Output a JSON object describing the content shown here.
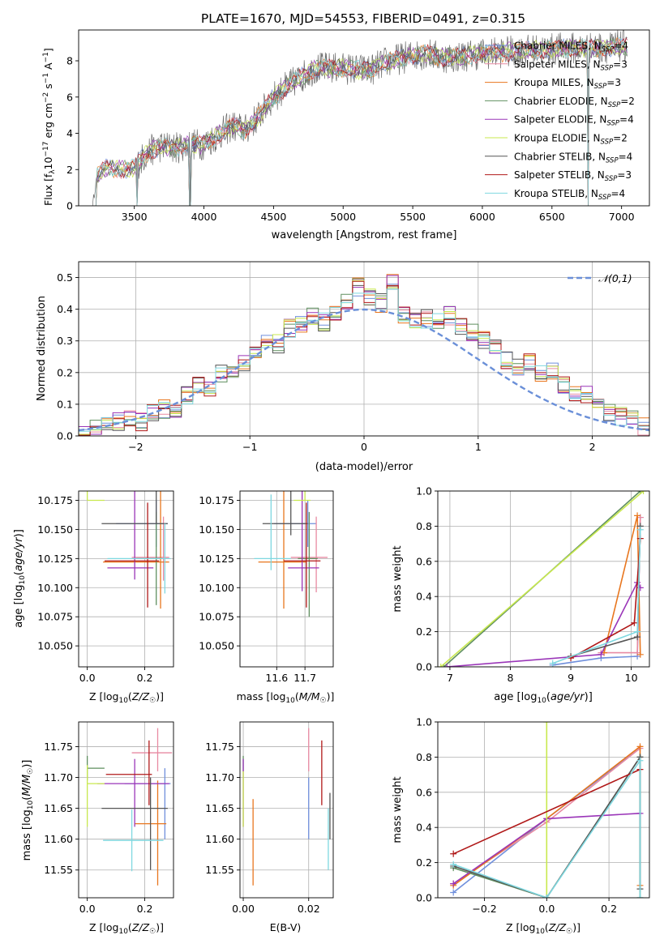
{
  "figure_title": "PLATE=1670, MJD=54553, FIBERID=0491, z=0.315",
  "colors": {
    "Chabrier MILES": "#6f8fdc",
    "Salpeter MILES": "#e88aa2",
    "Kroupa MILES": "#e8761e",
    "Chabrier ELODIE": "#5f8f5f",
    "Salpeter ELODIE": "#9a35b8",
    "Kroupa ELODIE": "#c8e84e",
    "Chabrier STELIB": "#555555",
    "Salpeter STELIB": "#b01818",
    "Kroupa STELIB": "#7fd8e0",
    "normal_curve": "#6a8fd8"
  },
  "chart_data": [
    {
      "type": "line",
      "title": "PLATE=1670, MJD=54553, FIBERID=0491, z=0.315",
      "xlabel": "wavelength [Angstrom, rest frame]",
      "ylabel": "Flux [f_λ 10^-17 erg cm^-2 s^-1 A^-1]",
      "xlim": [
        3100,
        7200
      ],
      "ylim": [
        0,
        9.7
      ],
      "xticks": [
        3500,
        4000,
        4500,
        5000,
        5500,
        6000,
        6500,
        7000
      ],
      "yticks": [
        0,
        2,
        4,
        6,
        8
      ],
      "legend_position": "upper right",
      "legend": [
        "Chabrier MILES, N_SSP=4",
        "Salpeter MILES, N_SSP=3",
        "Kroupa MILES, N_SSP=3",
        "Chabrier ELODIE, N_SSP=2",
        "Salpeter ELODIE, N_SSP=4",
        "Kroupa ELODIE, N_SSP=2",
        "Chabrier STELIB, N_SSP=4",
        "Salpeter STELIB, N_SSP=3",
        "Kroupa STELIB, N_SSP=4"
      ],
      "legend_colors": [
        "#6f8fdc",
        "#e88aa2",
        "#e8761e",
        "#5f8f5f",
        "#9a35b8",
        "#c8e84e",
        "#555555",
        "#b01818",
        "#7fd8e0"
      ],
      "spectrum_continuum": {
        "x": [
          3200,
          3230,
          3300,
          3400,
          3500,
          3600,
          3700,
          3800,
          3900,
          4000,
          4100,
          4200,
          4300,
          4400,
          4500,
          4600,
          4700,
          4800,
          4900,
          5000,
          5100,
          5200,
          5300,
          5400,
          5500,
          5600,
          5700,
          5800,
          5900,
          6000,
          6200,
          6400,
          6600,
          6800,
          7000
        ],
        "y": [
          0.0,
          1.6,
          2.1,
          2.0,
          2.1,
          3.0,
          3.3,
          3.2,
          3.4,
          3.4,
          3.9,
          4.4,
          4.2,
          5.0,
          6.0,
          6.6,
          7.1,
          7.6,
          7.6,
          7.6,
          7.5,
          7.5,
          7.9,
          8.1,
          8.3,
          8.4,
          8.2,
          8.2,
          8.3,
          8.4,
          8.5,
          8.6,
          8.7,
          8.7,
          8.8
        ]
      },
      "cutoffs": [
        3520,
        3900,
        6760
      ]
    },
    {
      "type": "bar",
      "xlabel": "(data-model)/error",
      "ylabel": "Normed distribution",
      "xlim": [
        -2.5,
        2.5
      ],
      "ylim": [
        0,
        0.55
      ],
      "xticks": [
        -2,
        -1,
        0,
        1,
        2
      ],
      "yticks": [
        0.0,
        0.1,
        0.2,
        0.3,
        0.4,
        0.5
      ],
      "legend": [
        "𝒩(0,1)"
      ],
      "legend_position": "upper right",
      "bin_edges_start": -2.5,
      "bin_width": 0.1,
      "base_values": [
        0.015,
        0.02,
        0.03,
        0.045,
        0.05,
        0.045,
        0.07,
        0.085,
        0.075,
        0.13,
        0.16,
        0.155,
        0.2,
        0.21,
        0.23,
        0.27,
        0.3,
        0.29,
        0.34,
        0.35,
        0.38,
        0.36,
        0.38,
        0.43,
        0.47,
        0.44,
        0.42,
        0.48,
        0.38,
        0.36,
        0.37,
        0.36,
        0.38,
        0.35,
        0.33,
        0.3,
        0.28,
        0.24,
        0.22,
        0.23,
        0.2,
        0.2,
        0.16,
        0.14,
        0.13,
        0.09,
        0.075,
        0.06,
        0.05,
        0.03
      ]
    },
    {
      "type": "scatter",
      "xlabel": "Z [log10(Z/Z☉)]",
      "ylabel": "age [log10(age/yr)]",
      "xlim": [
        -0.03,
        0.3
      ],
      "ylim": [
        10.032,
        10.183
      ],
      "xticks": [
        0.0,
        0.2
      ],
      "yticks": [
        10.05,
        10.075,
        10.1,
        10.125,
        10.15,
        10.175
      ],
      "points": [
        {
          "x": 0.24,
          "y": 10.155,
          "xerr": [
            0.14,
            0.04
          ],
          "yerr": [
            0.02,
            0.02
          ],
          "model": "Chabrier MILES"
        },
        {
          "x": 0.265,
          "y": 10.126,
          "xerr": [
            0.11,
            0.02
          ],
          "yerr": [
            0.02,
            0.035
          ],
          "model": "Salpeter MILES"
        },
        {
          "x": 0.255,
          "y": 10.122,
          "xerr": [
            0.2,
            0.03
          ],
          "yerr": [
            0.04,
            0.085
          ],
          "model": "Kroupa MILES"
        },
        {
          "x": 0.24,
          "y": 10.125,
          "xerr": [
            0.07,
            0.02
          ],
          "yerr": [
            0.04,
            0.04
          ],
          "model": "Chabrier ELODIE"
        },
        {
          "x": 0.165,
          "y": 10.117,
          "xerr": [
            0.095,
            0.065
          ],
          "yerr": [
            0.01,
            0.08
          ],
          "model": "Salpeter ELODIE"
        },
        {
          "x": 0.0,
          "y": 10.175,
          "xerr": [
            0.0,
            0.06
          ],
          "yerr": [
            0.0,
            0.075
          ],
          "model": "Kroupa ELODIE"
        },
        {
          "x": 0.24,
          "y": 10.155,
          "xerr": [
            0.19,
            0.04
          ],
          "yerr": [
            0.0,
            0.068
          ],
          "model": "Chabrier STELIB"
        },
        {
          "x": 0.21,
          "y": 10.123,
          "xerr": [
            0.15,
            0.04
          ],
          "yerr": [
            0.04,
            0.05
          ],
          "model": "Salpeter STELIB"
        },
        {
          "x": 0.27,
          "y": 10.125,
          "xerr": [
            0.2,
            0.02
          ],
          "yerr": [
            0.03,
            0.03
          ],
          "model": "Kroupa STELIB"
        }
      ]
    },
    {
      "type": "scatter",
      "xlabel": "mass [log10(M/M☉)]",
      "ylabel": "",
      "xlim": [
        11.47,
        11.8
      ],
      "ylim": [
        10.032,
        10.183
      ],
      "xticks": [
        11.6,
        11.7
      ],
      "yticks": [
        10.05,
        10.075,
        10.1,
        10.125,
        10.15,
        10.175
      ],
      "points": [
        {
          "x": 11.71,
          "y": 10.155,
          "xerr": [
            0.12,
            0.03
          ],
          "yerr": [
            0.02,
            0.02
          ],
          "model": "Chabrier MILES"
        },
        {
          "x": 11.74,
          "y": 10.126,
          "xerr": [
            0.09,
            0.04
          ],
          "yerr": [
            0.03,
            0.035
          ],
          "model": "Salpeter MILES"
        },
        {
          "x": 11.625,
          "y": 10.122,
          "xerr": [
            0.09,
            0.08
          ],
          "yerr": [
            0.04,
            0.085
          ],
          "model": "Kroupa MILES"
        },
        {
          "x": 11.715,
          "y": 10.125,
          "xerr": [
            0.04,
            0.03
          ],
          "yerr": [
            0.05,
            0.04
          ],
          "model": "Chabrier ELODIE"
        },
        {
          "x": 11.69,
          "y": 10.117,
          "xerr": [
            0.05,
            0.06
          ],
          "yerr": [
            0.02,
            0.08
          ],
          "model": "Salpeter ELODIE"
        },
        {
          "x": 11.7,
          "y": 10.175,
          "xerr": [
            0.04,
            0.02
          ],
          "yerr": [
            0.0,
            0.03
          ],
          "model": "Kroupa ELODIE"
        },
        {
          "x": 11.65,
          "y": 10.155,
          "xerr": [
            0.1,
            0.06
          ],
          "yerr": [
            0.01,
            0.068
          ],
          "model": "Chabrier STELIB"
        },
        {
          "x": 11.705,
          "y": 10.123,
          "xerr": [
            0.08,
            0.05
          ],
          "yerr": [
            0.04,
            0.05
          ],
          "model": "Salpeter STELIB"
        },
        {
          "x": 11.58,
          "y": 10.125,
          "xerr": [
            0.06,
            0.07
          ],
          "yerr": [
            0.01,
            0.055
          ],
          "model": "Kroupa STELIB"
        }
      ]
    },
    {
      "type": "line",
      "xlabel": "age log10(age/yr)",
      "ylabel": "mass weight",
      "xlim": [
        6.8,
        10.3
      ],
      "ylim": [
        0.0,
        1.0
      ],
      "xticks": [
        7,
        8,
        9,
        10
      ],
      "yticks": [
        0.0,
        0.2,
        0.4,
        0.6,
        0.8,
        1.0
      ],
      "series": [
        {
          "model": "Chabrier MILES",
          "x": [
            8.7,
            9.5,
            10.1,
            10.15
          ],
          "y": [
            0.01,
            0.05,
            0.06,
            0.85
          ]
        },
        {
          "model": "Salpeter MILES",
          "x": [
            9.5,
            10.1,
            10.15
          ],
          "y": [
            0.08,
            0.08,
            0.85
          ]
        },
        {
          "model": "Kroupa MILES",
          "x": [
            9.55,
            10.1,
            10.15
          ],
          "y": [
            0.08,
            0.86,
            0.07
          ]
        },
        {
          "model": "Chabrier ELODIE",
          "x": [
            6.9,
            10.15
          ],
          "y": [
            0.0,
            1.0
          ]
        },
        {
          "model": "Salpeter ELODIE",
          "x": [
            6.95,
            9.5,
            10.1,
            10.15
          ],
          "y": [
            0.0,
            0.07,
            0.48,
            0.45
          ]
        },
        {
          "model": "Kroupa ELODIE",
          "x": [
            6.85,
            10.2
          ],
          "y": [
            0.0,
            1.0
          ]
        },
        {
          "model": "Chabrier STELIB",
          "x": [
            9.0,
            10.1,
            10.15
          ],
          "y": [
            0.06,
            0.17,
            0.8
          ]
        },
        {
          "model": "Salpeter STELIB",
          "x": [
            9.0,
            10.05,
            10.15
          ],
          "y": [
            0.05,
            0.25,
            0.73
          ]
        },
        {
          "model": "Kroupa STELIB",
          "x": [
            8.7,
            10.1,
            10.15
          ],
          "y": [
            0.02,
            0.2,
            0.78
          ]
        }
      ]
    },
    {
      "type": "scatter",
      "xlabel": "Z [log10(Z/Z☉)]",
      "ylabel": "mass [log10(M/M☉)]",
      "xlim": [
        -0.03,
        0.3
      ],
      "ylim": [
        11.505,
        11.79
      ],
      "xticks": [
        0.0,
        0.2
      ],
      "yticks": [
        11.55,
        11.6,
        11.65,
        11.7,
        11.75
      ],
      "points": [
        {
          "x": 0.27,
          "y": 11.69,
          "xerr": [
            0.14,
            0.02
          ],
          "yerr": [
            0.09,
            0.025
          ],
          "model": "Chabrier MILES"
        },
        {
          "x": 0.245,
          "y": 11.74,
          "xerr": [
            0.09,
            0.05
          ],
          "yerr": [
            0.03,
            0.04
          ],
          "model": "Salpeter MILES"
        },
        {
          "x": 0.245,
          "y": 11.625,
          "xerr": [
            0.08,
            0.03
          ],
          "yerr": [
            0.1,
            0.07
          ],
          "model": "Kroupa MILES"
        },
        {
          "x": 0.0,
          "y": 11.715,
          "xerr": [
            0.0,
            0.06
          ],
          "yerr": [
            0.02,
            0.02
          ],
          "model": "Chabrier ELODIE"
        },
        {
          "x": 0.165,
          "y": 11.69,
          "xerr": [
            0.13,
            0.12
          ],
          "yerr": [
            0.07,
            0.04
          ],
          "model": "Salpeter ELODIE"
        },
        {
          "x": 0.0,
          "y": 11.69,
          "xerr": [
            0.0,
            0.06
          ],
          "yerr": [
            0.07,
            0.03
          ],
          "model": "Kroupa ELODIE"
        },
        {
          "x": 0.22,
          "y": 11.65,
          "xerr": [
            0.17,
            0.06
          ],
          "yerr": [
            0.1,
            0.05
          ],
          "model": "Chabrier STELIB"
        },
        {
          "x": 0.215,
          "y": 11.705,
          "xerr": [
            0.15,
            0.01
          ],
          "yerr": [
            0.05,
            0.055
          ],
          "model": "Salpeter STELIB"
        },
        {
          "x": 0.155,
          "y": 11.598,
          "xerr": [
            0.1,
            0.11
          ],
          "yerr": [
            0.05,
            0.05
          ],
          "model": "Kroupa STELIB"
        }
      ]
    },
    {
      "type": "scatter",
      "xlabel": "E(B-V)",
      "ylabel": "",
      "xlim": [
        -0.001,
        0.0275
      ],
      "ylim": [
        11.505,
        11.79
      ],
      "xticks": [
        0.0,
        0.02
      ],
      "yticks": [
        11.55,
        11.6,
        11.65,
        11.7,
        11.75
      ],
      "points": [
        {
          "x": 0.02,
          "y": 11.65,
          "xerr": [
            0,
            0
          ],
          "yerr": [
            0.05,
            0.05
          ],
          "model": "Chabrier MILES"
        },
        {
          "x": 0.02,
          "y": 11.74,
          "xerr": [
            0,
            0
          ],
          "yerr": [
            0.03,
            0.04
          ],
          "model": "Salpeter MILES"
        },
        {
          "x": 0.003,
          "y": 11.6,
          "xerr": [
            0,
            0
          ],
          "yerr": [
            0.075,
            0.065
          ],
          "model": "Kroupa MILES"
        },
        {
          "x": 0.0,
          "y": 11.72,
          "xerr": [
            0,
            0
          ],
          "yerr": [
            0.01,
            0.015
          ],
          "model": "Chabrier ELODIE"
        },
        {
          "x": 0.0,
          "y": 11.69,
          "xerr": [
            0,
            0
          ],
          "yerr": [
            0.07,
            0.04
          ],
          "model": "Salpeter ELODIE"
        },
        {
          "x": 0.0,
          "y": 11.69,
          "xerr": [
            0,
            0
          ],
          "yerr": [
            0.07,
            0.02
          ],
          "model": "Kroupa ELODIE"
        },
        {
          "x": 0.0265,
          "y": 11.65,
          "xerr": [
            0,
            0
          ],
          "yerr": [
            0.05,
            0.025
          ],
          "model": "Chabrier STELIB"
        },
        {
          "x": 0.024,
          "y": 11.705,
          "xerr": [
            0,
            0
          ],
          "yerr": [
            0.05,
            0.055
          ],
          "model": "Salpeter STELIB"
        },
        {
          "x": 0.026,
          "y": 11.6,
          "xerr": [
            0,
            0
          ],
          "yerr": [
            0.05,
            0.05
          ],
          "model": "Kroupa STELIB"
        }
      ]
    },
    {
      "type": "line",
      "xlabel": "Z [log10(Z/Z☉)]",
      "ylabel": "mass weight",
      "xlim": [
        -0.35,
        0.33
      ],
      "ylim": [
        0.0,
        1.0
      ],
      "xticks": [
        -0.2,
        0.0,
        0.2
      ],
      "yticks": [
        0.0,
        0.2,
        0.4,
        0.6,
        0.8,
        1.0
      ],
      "series": [
        {
          "model": "Chabrier MILES",
          "x": [
            -0.3,
            0.0,
            0.3
          ],
          "y": [
            0.03,
            0.45,
            0.85
          ]
        },
        {
          "model": "Salpeter MILES",
          "x": [
            -0.3,
            0.0,
            0.3
          ],
          "y": [
            0.08,
            0.43,
            0.85
          ]
        },
        {
          "model": "Kroupa MILES",
          "x": [
            -0.3,
            0.0,
            0.3,
            0.3
          ],
          "y": [
            0.07,
            0.45,
            0.86,
            0.07
          ]
        },
        {
          "model": "Chabrier ELODIE",
          "x": [
            -0.3,
            0.0,
            0.3,
            0.3
          ],
          "y": [
            0.17,
            0.0,
            0.8,
            0.0
          ]
        },
        {
          "model": "Salpeter ELODIE",
          "x": [
            -0.3,
            0.0,
            0.3
          ],
          "y": [
            0.08,
            0.45,
            0.48
          ]
        },
        {
          "model": "Kroupa ELODIE",
          "x": [
            0.0,
            0.0
          ],
          "y": [
            0.0,
            1.0
          ]
        },
        {
          "model": "Chabrier STELIB",
          "x": [
            -0.3,
            0.0,
            0.3,
            0.3
          ],
          "y": [
            0.18,
            0.0,
            0.8,
            0.05
          ]
        },
        {
          "model": "Salpeter STELIB",
          "x": [
            -0.3,
            0.3
          ],
          "y": [
            0.25,
            0.73
          ]
        },
        {
          "model": "Kroupa STELIB",
          "x": [
            -0.3,
            0.0,
            0.3,
            0.3
          ],
          "y": [
            0.19,
            0.0,
            0.78,
            0.0
          ]
        }
      ]
    }
  ]
}
